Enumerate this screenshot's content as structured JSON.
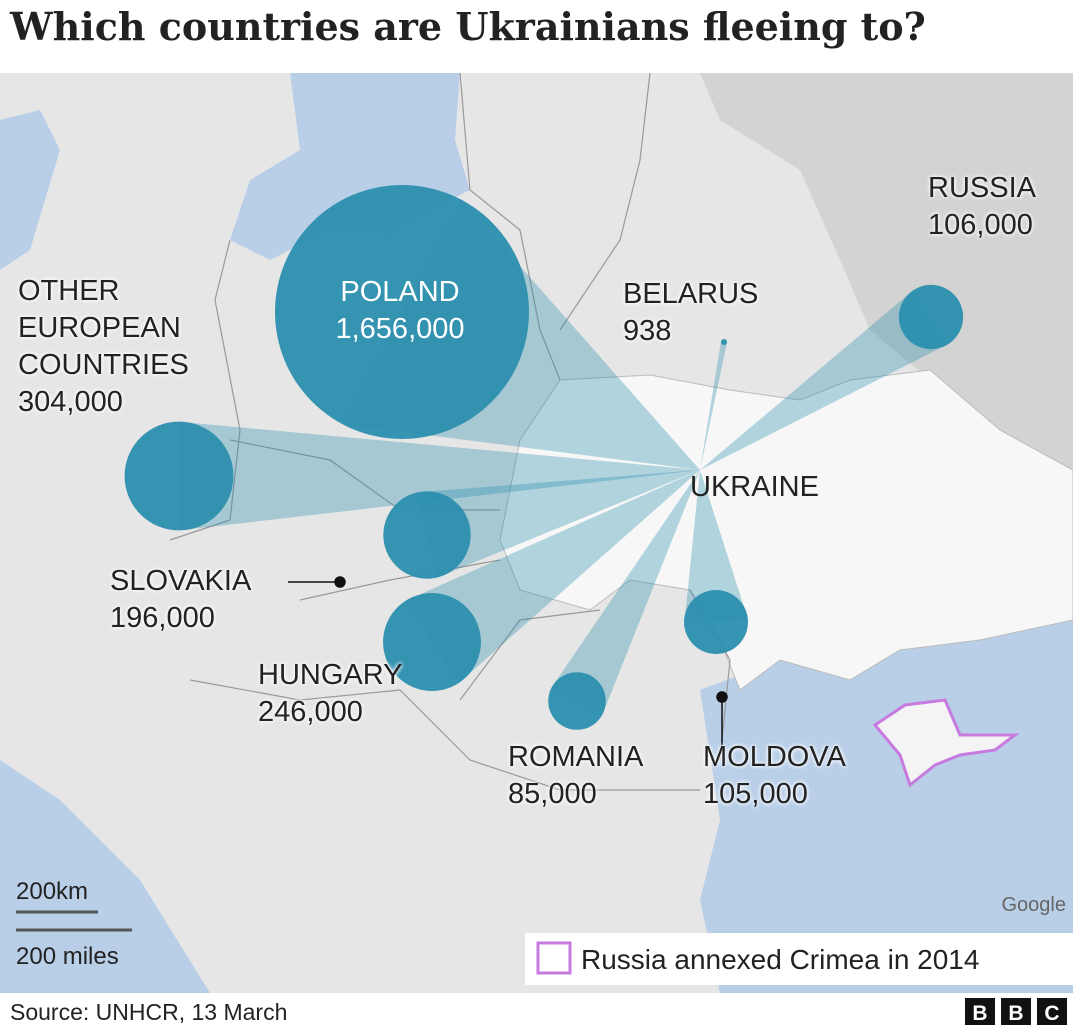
{
  "title": "Which countries are Ukrainians fleeing to?",
  "origin": "UKRAINE",
  "countries": [
    {
      "name": "POLAND",
      "value": 1656000,
      "label": "1,656,000"
    },
    {
      "name": "OTHER EUROPEAN COUNTRIES",
      "value": 304000,
      "label": "304,000"
    },
    {
      "name": "BELARUS",
      "value": 938,
      "label": "938"
    },
    {
      "name": "RUSSIA",
      "value": 106000,
      "label": "106,000"
    },
    {
      "name": "SLOVAKIA",
      "value": 196000,
      "label": "196,000"
    },
    {
      "name": "HUNGARY",
      "value": 246000,
      "label": "246,000"
    },
    {
      "name": "ROMANIA",
      "value": 85000,
      "label": "85,000"
    },
    {
      "name": "MOLDOVA",
      "value": 105000,
      "label": "105,000"
    }
  ],
  "scale": {
    "km": "200km",
    "miles": "200 miles"
  },
  "legend": "Russia annexed Crimea in 2014",
  "attribution": "Google",
  "source": "Source: UNHCR, 13 March",
  "logo": [
    "B",
    "B",
    "C"
  ]
}
